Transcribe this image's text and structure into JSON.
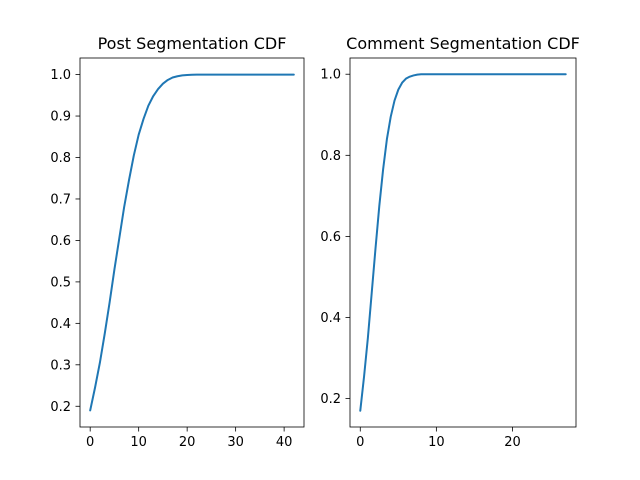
{
  "chart_data": [
    {
      "type": "line",
      "title": "Post Segmentation CDF",
      "xlabel": "",
      "ylabel": "",
      "xlim": [
        -2.1,
        44.1
      ],
      "ylim": [
        0.15,
        1.04
      ],
      "xticks": [
        0,
        10,
        20,
        30,
        40
      ],
      "yticks": [
        0.2,
        0.3,
        0.4,
        0.5,
        0.6,
        0.7,
        0.8,
        0.9,
        1.0
      ],
      "ytick_labels": [
        "0.2",
        "0.3",
        "0.4",
        "0.5",
        "0.6",
        "0.7",
        "0.8",
        "0.9",
        "1.0"
      ],
      "grid": false,
      "series": [
        {
          "color": "#1f77b4",
          "x": [
            0,
            1,
            2,
            3,
            4,
            5,
            6,
            7,
            8,
            9,
            10,
            11,
            12,
            13,
            14,
            15,
            16,
            17,
            18,
            19,
            20,
            21,
            22,
            23,
            24,
            25,
            26,
            27,
            28,
            29,
            30,
            31,
            32,
            33,
            34,
            35,
            36,
            37,
            38,
            39,
            40,
            41,
            42
          ],
          "y": [
            0.19,
            0.245,
            0.305,
            0.375,
            0.45,
            0.53,
            0.605,
            0.68,
            0.745,
            0.805,
            0.855,
            0.893,
            0.925,
            0.948,
            0.965,
            0.978,
            0.987,
            0.993,
            0.996,
            0.998,
            0.999,
            0.9995,
            1.0,
            1.0,
            1.0,
            1.0,
            1.0,
            1.0,
            1.0,
            1.0,
            1.0,
            1.0,
            1.0,
            1.0,
            1.0,
            1.0,
            1.0,
            1.0,
            1.0,
            1.0,
            1.0,
            1.0,
            1.0
          ]
        }
      ]
    },
    {
      "type": "line",
      "title": "Comment Segmentation CDF",
      "xlabel": "",
      "ylabel": "",
      "xlim": [
        -1.35,
        28.35
      ],
      "ylim": [
        0.13,
        1.04
      ],
      "xticks": [
        0,
        10,
        20
      ],
      "yticks": [
        0.2,
        0.4,
        0.6,
        0.8,
        1.0
      ],
      "ytick_labels": [
        "0.2",
        "0.4",
        "0.6",
        "0.8",
        "1.0"
      ],
      "grid": false,
      "series": [
        {
          "color": "#1f77b4",
          "x": [
            0,
            0.5,
            1,
            1.5,
            2,
            2.5,
            3,
            3.5,
            4,
            4.5,
            5,
            5.5,
            6,
            6.5,
            7,
            7.5,
            8,
            8.5,
            9,
            10,
            11,
            12,
            13,
            14,
            15,
            16,
            17,
            18,
            19,
            20,
            21,
            22,
            23,
            24,
            25,
            26,
            27
          ],
          "y": [
            0.17,
            0.255,
            0.35,
            0.46,
            0.57,
            0.675,
            0.765,
            0.84,
            0.895,
            0.935,
            0.962,
            0.979,
            0.989,
            0.994,
            0.997,
            0.999,
            1.0,
            1.0,
            1.0,
            1.0,
            1.0,
            1.0,
            1.0,
            1.0,
            1.0,
            1.0,
            1.0,
            1.0,
            1.0,
            1.0,
            1.0,
            1.0,
            1.0,
            1.0,
            1.0,
            1.0,
            1.0
          ]
        }
      ]
    }
  ]
}
